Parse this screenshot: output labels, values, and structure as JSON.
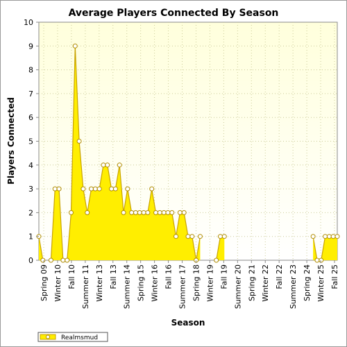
{
  "chart_data": {
    "type": "area",
    "title": "Average Players Connected By Season",
    "xlabel": "Season",
    "ylabel": "Players Connected",
    "ylim": [
      0,
      10
    ],
    "yticks": [
      "0",
      "1",
      "2",
      "3",
      "4",
      "5",
      "6",
      "7",
      "8",
      "9",
      "10"
    ],
    "xtick_labels": [
      "Spring 09",
      "Winter 10",
      "Fall 10",
      "Summer 11",
      "Winter 13",
      "Fall 13",
      "Summer 14",
      "Spring 15",
      "Winter 16",
      "Fall 16",
      "Summer 17",
      "Spring 18",
      "Winter 19",
      "Fall 19",
      "Summer 20",
      "Spring 21",
      "Winter 22",
      "Fall 22",
      "Summer 23",
      "Spring 24",
      "Winter 25",
      "Fall 25"
    ],
    "grid": true,
    "legend_position": "bottom-left",
    "colors": {
      "fill": "#ffee00",
      "line": "#c8a200",
      "marker_fill": "#ffffff",
      "marker_stroke": "#b08c00",
      "plot_bg_top": "#ffffdc",
      "plot_bg_bottom": "#ffffff",
      "grid": "#cccc99"
    },
    "series": [
      {
        "name": "Realmsmud",
        "values": [
          1,
          0,
          null,
          0,
          3,
          3,
          0,
          0,
          2,
          9,
          5,
          3,
          2,
          3,
          3,
          3,
          4,
          4,
          3,
          3,
          4,
          2,
          3,
          2,
          2,
          2,
          2,
          2,
          3,
          2,
          2,
          2,
          2,
          2,
          1,
          2,
          2,
          1,
          1,
          0,
          1,
          null,
          null,
          null,
          0,
          1,
          1,
          null,
          null,
          null,
          null,
          null,
          null,
          null,
          null,
          null,
          null,
          null,
          null,
          null,
          null,
          null,
          null,
          null,
          null,
          null,
          null,
          null,
          1,
          0,
          0,
          1,
          1,
          1,
          1
        ],
        "markers": [
          true,
          true,
          false,
          true,
          true,
          true,
          true,
          true,
          true,
          true,
          true,
          true,
          true,
          true,
          true,
          true,
          true,
          true,
          true,
          true,
          true,
          true,
          true,
          true,
          true,
          true,
          true,
          true,
          true,
          true,
          true,
          true,
          true,
          true,
          true,
          true,
          true,
          true,
          true,
          true,
          true,
          false,
          false,
          false,
          true,
          true,
          true,
          false,
          false,
          false,
          false,
          false,
          false,
          false,
          false,
          false,
          false,
          false,
          false,
          false,
          false,
          false,
          false,
          false,
          false,
          false,
          false,
          false,
          true,
          true,
          true,
          true,
          true,
          true,
          true
        ]
      }
    ]
  }
}
